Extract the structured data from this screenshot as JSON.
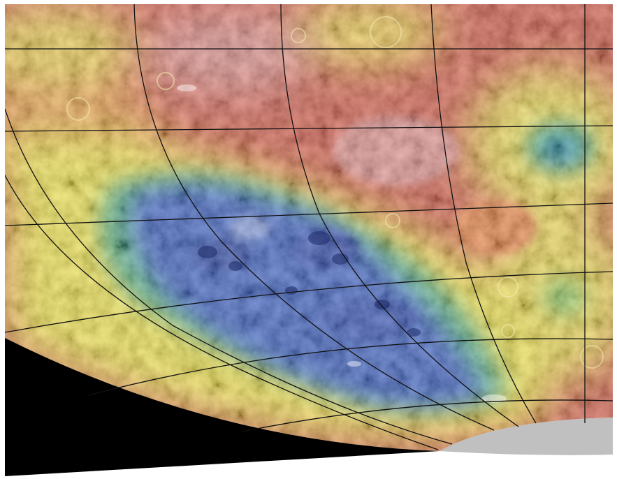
{
  "map": {
    "kind": "topographic elevation map",
    "color_scale": {
      "high": "#c8463a",
      "upper_mid": "#e67a3a",
      "mid": "#e8d83a",
      "lower_mid": "#3aa86a",
      "low": "#2a4fb0",
      "lowest": "#1f3a8a"
    },
    "shadow_color": "#000000",
    "cap_color": "#c0c0c0",
    "grid_color": "#111111",
    "labels": []
  }
}
